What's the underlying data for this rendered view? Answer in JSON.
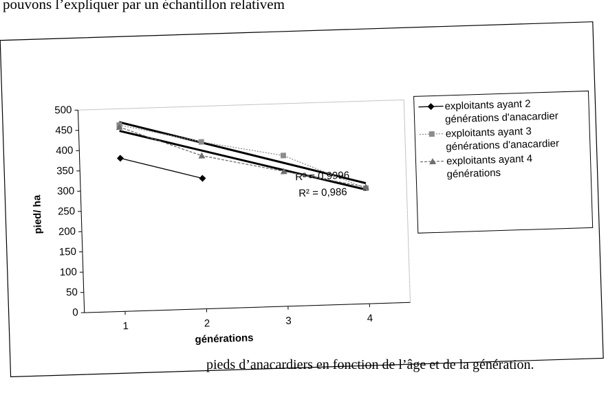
{
  "page_text": {
    "top": "pouvons l’expliquer par un échantillon relativem",
    "caption": "pieds d’anacardiers en fonction de l’âge et de la génération."
  },
  "chart_data": {
    "type": "line",
    "x": [
      1,
      2,
      3,
      4
    ],
    "xlim": [
      0.5,
      4.5
    ],
    "xticks": [
      1,
      2,
      3,
      4
    ],
    "ylim": [
      0,
      500
    ],
    "yticks": [
      0,
      50,
      100,
      150,
      200,
      250,
      300,
      350,
      400,
      450,
      500
    ],
    "xlabel": "générations",
    "ylabel": "pied/ ha",
    "series": [
      {
        "name": "exploitants ayant 2 générations d'anacardier",
        "color": "#000000",
        "marker": "diamond",
        "dash": "none",
        "trendline": false,
        "values": [
          378,
          322,
          null,
          null
        ]
      },
      {
        "name": "exploitants ayant 3 générations d'anacardier",
        "color": "#8c8c8c",
        "marker": "square",
        "dash": "2,2",
        "trendline": true,
        "values": [
          460,
          412,
          372,
          285
        ]
      },
      {
        "name": "exploitants ayant 4 générations",
        "color": "#6e6e6e",
        "marker": "triangle",
        "dash": "4,2",
        "trendline": true,
        "values": [
          455,
          378,
          333,
          288
        ]
      }
    ],
    "annotations": [
      "R² = 0,9996",
      "R² = 0,986"
    ],
    "legend": "right"
  }
}
